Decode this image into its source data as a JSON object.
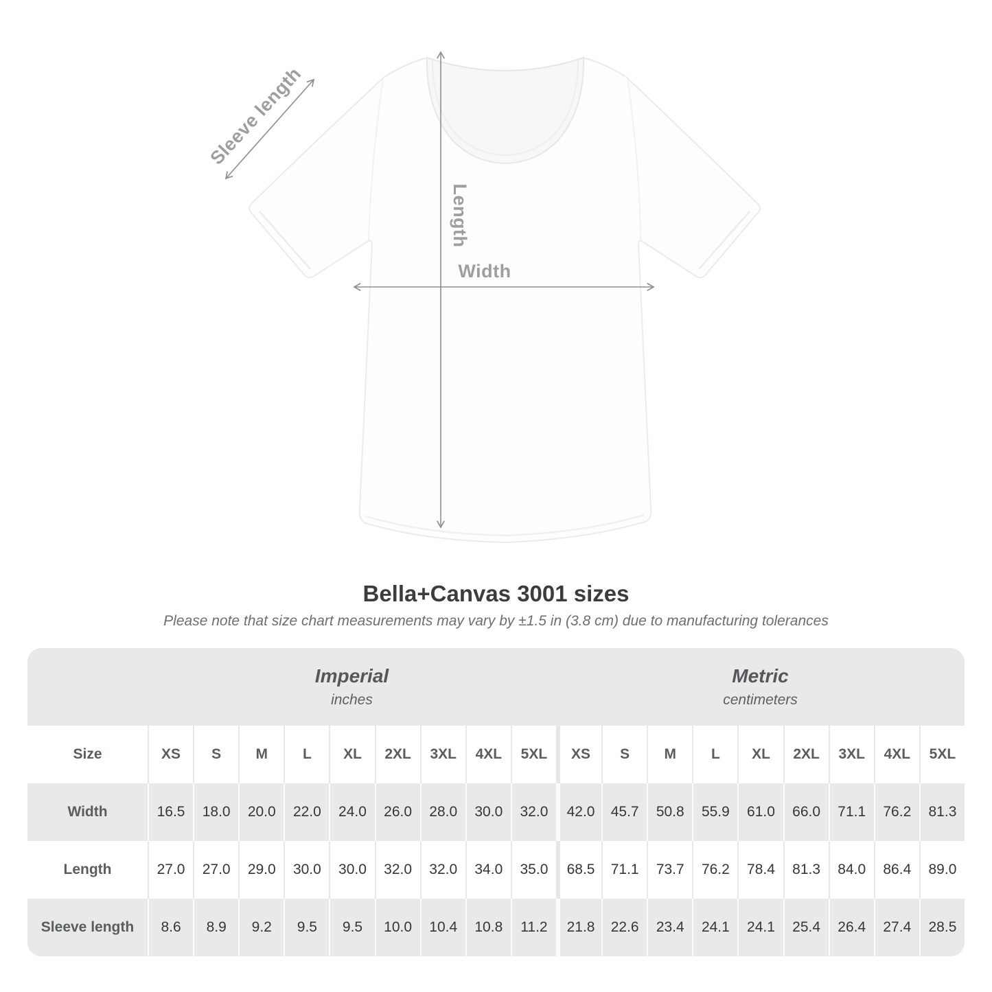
{
  "title": "Bella+Canvas 3001 sizes",
  "subtitle": "Please note that size chart measurements may vary by ±1.5 in (3.8 cm) due to manufacturing tolerances",
  "diagram": {
    "sleeve_label": "Sleeve length",
    "length_label": "Length",
    "width_label": "Width"
  },
  "table": {
    "size_header": "Size",
    "sizes": [
      "XS",
      "S",
      "M",
      "L",
      "XL",
      "2XL",
      "3XL",
      "4XL",
      "5XL"
    ],
    "sections": [
      {
        "label": "Imperial",
        "unit": "inches"
      },
      {
        "label": "Metric",
        "unit": "centimeters"
      }
    ],
    "rows": [
      {
        "label": "Width",
        "imperial": [
          "16.5",
          "18.0",
          "20.0",
          "22.0",
          "24.0",
          "26.0",
          "28.0",
          "30.0",
          "32.0"
        ],
        "metric": [
          "42.0",
          "45.7",
          "50.8",
          "55.9",
          "61.0",
          "66.0",
          "71.1",
          "76.2",
          "81.3"
        ]
      },
      {
        "label": "Length",
        "imperial": [
          "27.0",
          "27.0",
          "29.0",
          "30.0",
          "30.0",
          "32.0",
          "32.0",
          "34.0",
          "35.0"
        ],
        "metric": [
          "68.5",
          "71.1",
          "73.7",
          "76.2",
          "78.4",
          "81.3",
          "84.0",
          "86.4",
          "89.0"
        ]
      },
      {
        "label": "Sleeve length",
        "imperial": [
          "8.6",
          "8.9",
          "9.2",
          "9.5",
          "9.5",
          "10.0",
          "10.4",
          "10.8",
          "11.2"
        ],
        "metric": [
          "21.8",
          "22.6",
          "23.4",
          "24.1",
          "24.1",
          "25.4",
          "26.4",
          "27.4",
          "28.5"
        ]
      }
    ]
  },
  "chart_data": {
    "type": "table",
    "title": "Bella+Canvas 3001 sizes",
    "note": "Please note that size chart measurements may vary by ±1.5 in (3.8 cm) due to manufacturing tolerances",
    "columns": [
      "XS",
      "S",
      "M",
      "L",
      "XL",
      "2XL",
      "3XL",
      "4XL",
      "5XL"
    ],
    "sections": [
      {
        "name": "Imperial",
        "unit": "inches",
        "rows": [
          {
            "label": "Width",
            "values": [
              16.5,
              18.0,
              20.0,
              22.0,
              24.0,
              26.0,
              28.0,
              30.0,
              32.0
            ]
          },
          {
            "label": "Length",
            "values": [
              27.0,
              27.0,
              29.0,
              30.0,
              30.0,
              32.0,
              32.0,
              34.0,
              35.0
            ]
          },
          {
            "label": "Sleeve length",
            "values": [
              8.6,
              8.9,
              9.2,
              9.5,
              9.5,
              10.0,
              10.4,
              10.8,
              11.2
            ]
          }
        ]
      },
      {
        "name": "Metric",
        "unit": "centimeters",
        "rows": [
          {
            "label": "Width",
            "values": [
              42.0,
              45.7,
              50.8,
              55.9,
              61.0,
              66.0,
              71.1,
              76.2,
              81.3
            ]
          },
          {
            "label": "Length",
            "values": [
              68.5,
              71.1,
              73.7,
              76.2,
              78.4,
              81.3,
              84.0,
              86.4,
              89.0
            ]
          },
          {
            "label": "Sleeve length",
            "values": [
              21.8,
              22.6,
              23.4,
              24.1,
              24.1,
              25.4,
              26.4,
              27.4,
              28.5
            ]
          }
        ]
      }
    ]
  },
  "colors": {
    "band_gray": "#e9e9e8",
    "title_text": "#3c3c3c",
    "subtitle_text": "#6e6e6e",
    "header_text": "#575d61",
    "value_text": "#33373a",
    "diagram_label": "#9e9e9e",
    "arrow": "#8f8f8f",
    "shirt_outline": "#ebebeb"
  }
}
